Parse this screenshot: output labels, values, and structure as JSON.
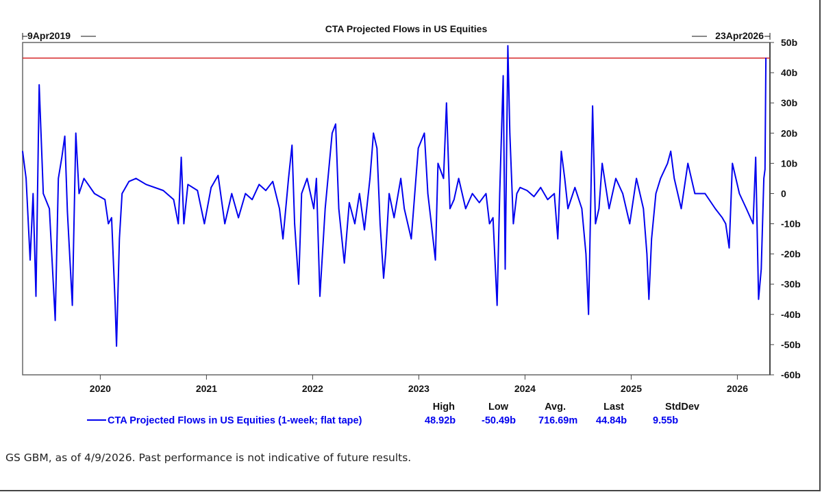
{
  "chart_data": {
    "type": "line",
    "title": "CTA Projected Flows in US Equities",
    "start_label": "9Apr2019",
    "end_label": "23Apr2026",
    "x_ticks": [
      "2020",
      "2021",
      "2022",
      "2023",
      "2024",
      "2025",
      "2026"
    ],
    "y_ticks": [
      "50b",
      "40b",
      "30b",
      "20b",
      "10b",
      "0",
      "-10b",
      "-20b",
      "-30b",
      "-40b",
      "-50b",
      "-60b"
    ],
    "ylim": [
      -60,
      50
    ],
    "xlim": [
      "2019-04-09",
      "2026-04-23"
    ],
    "grid": false,
    "reference_line": {
      "value": 44.84,
      "color": "#d62728"
    },
    "series": [
      {
        "name": "CTA Projected Flows in US Equities (1-week; flat tape)",
        "color": "#0000ee",
        "points": [
          [
            "2019-04-09",
            14
          ],
          [
            "2019-04-21",
            5
          ],
          [
            "2019-05-05",
            -22
          ],
          [
            "2019-05-15",
            0
          ],
          [
            "2019-05-25",
            -34
          ],
          [
            "2019-06-05",
            36
          ],
          [
            "2019-06-19",
            0
          ],
          [
            "2019-07-10",
            -5
          ],
          [
            "2019-07-30",
            -42
          ],
          [
            "2019-08-10",
            5
          ],
          [
            "2019-08-22",
            12
          ],
          [
            "2019-09-01",
            19
          ],
          [
            "2019-09-10",
            -6
          ],
          [
            "2019-09-27",
            -37
          ],
          [
            "2019-10-09",
            20
          ],
          [
            "2019-10-20",
            0
          ],
          [
            "2019-11-06",
            5
          ],
          [
            "2019-12-12",
            0
          ],
          [
            "2020-01-17",
            -2
          ],
          [
            "2020-01-29",
            -10
          ],
          [
            "2020-02-09",
            -8
          ],
          [
            "2020-02-21",
            -36
          ],
          [
            "2020-02-26",
            -50.49
          ],
          [
            "2020-03-07",
            -15
          ],
          [
            "2020-03-16",
            0
          ],
          [
            "2020-04-09",
            4
          ],
          [
            "2020-05-03",
            5
          ],
          [
            "2020-06-07",
            3
          ],
          [
            "2020-08-05",
            1
          ],
          [
            "2020-09-10",
            -2
          ],
          [
            "2020-09-26",
            -10
          ],
          [
            "2020-10-06",
            12
          ],
          [
            "2020-10-15",
            -10
          ],
          [
            "2020-10-29",
            3
          ],
          [
            "2020-12-01",
            1
          ],
          [
            "2020-12-25",
            -10
          ],
          [
            "2021-01-17",
            2
          ],
          [
            "2021-02-10",
            6
          ],
          [
            "2021-03-05",
            -10
          ],
          [
            "2021-03-29",
            0
          ],
          [
            "2021-04-21",
            -8
          ],
          [
            "2021-05-15",
            0
          ],
          [
            "2021-06-07",
            -2
          ],
          [
            "2021-07-01",
            3
          ],
          [
            "2021-07-24",
            1
          ],
          [
            "2021-08-17",
            4
          ],
          [
            "2021-09-09",
            -5
          ],
          [
            "2021-09-21",
            -15
          ],
          [
            "2021-10-10",
            5
          ],
          [
            "2021-10-22",
            16
          ],
          [
            "2021-10-31",
            -10
          ],
          [
            "2021-11-14",
            -30
          ],
          [
            "2021-11-24",
            0
          ],
          [
            "2021-12-13",
            5
          ],
          [
            "2022-01-05",
            -5
          ],
          [
            "2022-01-14",
            5
          ],
          [
            "2022-01-26",
            -34
          ],
          [
            "2022-02-13",
            -5
          ],
          [
            "2022-03-09",
            20
          ],
          [
            "2022-03-21",
            23
          ],
          [
            "2022-04-01",
            -5
          ],
          [
            "2022-04-20",
            -23
          ],
          [
            "2022-05-07",
            -3
          ],
          [
            "2022-05-26",
            -10
          ],
          [
            "2022-06-11",
            0
          ],
          [
            "2022-06-28",
            -12
          ],
          [
            "2022-07-17",
            5
          ],
          [
            "2022-07-29",
            20
          ],
          [
            "2022-08-10",
            15
          ],
          [
            "2022-08-21",
            -10
          ],
          [
            "2022-09-02",
            -28
          ],
          [
            "2022-09-09",
            -20
          ],
          [
            "2022-09-21",
            0
          ],
          [
            "2022-10-08",
            -8
          ],
          [
            "2022-10-31",
            5
          ],
          [
            "2022-11-12",
            -5
          ],
          [
            "2022-12-06",
            -15
          ],
          [
            "2022-12-30",
            15
          ],
          [
            "2023-01-20",
            20
          ],
          [
            "2023-02-01",
            0
          ],
          [
            "2023-02-13",
            -10
          ],
          [
            "2023-02-27",
            -22
          ],
          [
            "2023-03-08",
            10
          ],
          [
            "2023-03-27",
            5
          ],
          [
            "2023-04-06",
            30
          ],
          [
            "2023-04-18",
            -5
          ],
          [
            "2023-05-02",
            -2
          ],
          [
            "2023-05-18",
            5
          ],
          [
            "2023-06-11",
            -5
          ],
          [
            "2023-07-04",
            0
          ],
          [
            "2023-07-28",
            -3
          ],
          [
            "2023-08-20",
            0
          ],
          [
            "2023-09-01",
            -10
          ],
          [
            "2023-09-13",
            -8
          ],
          [
            "2023-09-27",
            -37
          ],
          [
            "2023-10-06",
            0
          ],
          [
            "2023-10-18",
            39
          ],
          [
            "2023-10-25",
            -25
          ],
          [
            "2023-11-03",
            48.92
          ],
          [
            "2023-11-10",
            20
          ],
          [
            "2023-11-22",
            -10
          ],
          [
            "2023-12-04",
            0
          ],
          [
            "2023-12-15",
            2
          ],
          [
            "2024-01-08",
            1
          ],
          [
            "2024-02-01",
            -1
          ],
          [
            "2024-02-24",
            2
          ],
          [
            "2024-03-19",
            -2
          ],
          [
            "2024-04-11",
            0
          ],
          [
            "2024-04-23",
            -15
          ],
          [
            "2024-05-05",
            14
          ],
          [
            "2024-05-17",
            5
          ],
          [
            "2024-05-28",
            -5
          ],
          [
            "2024-06-21",
            2
          ],
          [
            "2024-07-15",
            -5
          ],
          [
            "2024-07-29",
            -20
          ],
          [
            "2024-08-07",
            -40
          ],
          [
            "2024-08-21",
            29
          ],
          [
            "2024-08-31",
            -10
          ],
          [
            "2024-09-12",
            -5
          ],
          [
            "2024-09-23",
            10
          ],
          [
            "2024-10-17",
            -5
          ],
          [
            "2024-11-09",
            5
          ],
          [
            "2024-12-03",
            0
          ],
          [
            "2024-12-27",
            -10
          ],
          [
            "2025-01-19",
            5
          ],
          [
            "2025-02-12",
            -5
          ],
          [
            "2025-02-24",
            -20
          ],
          [
            "2025-03-03",
            -35
          ],
          [
            "2025-03-12",
            -15
          ],
          [
            "2025-03-27",
            0
          ],
          [
            "2025-04-12",
            5
          ],
          [
            "2025-05-06",
            10
          ],
          [
            "2025-05-17",
            14
          ],
          [
            "2025-05-29",
            5
          ],
          [
            "2025-06-22",
            -5
          ],
          [
            "2025-07-15",
            10
          ],
          [
            "2025-08-08",
            0
          ],
          [
            "2025-09-12",
            0
          ],
          [
            "2025-10-17",
            -5
          ],
          [
            "2025-11-10",
            -8
          ],
          [
            "2025-11-22",
            -10
          ],
          [
            "2025-12-04",
            -18
          ],
          [
            "2025-12-15",
            10
          ],
          [
            "2026-01-08",
            0
          ],
          [
            "2026-02-01",
            -5
          ],
          [
            "2026-02-24",
            -10
          ],
          [
            "2026-03-05",
            12
          ],
          [
            "2026-03-15",
            -35
          ],
          [
            "2026-03-24",
            -25
          ],
          [
            "2026-04-02",
            5
          ],
          [
            "2026-04-06",
            8
          ],
          [
            "2026-04-09",
            44.84
          ]
        ]
      }
    ],
    "stats": {
      "headers": [
        "High",
        "Low",
        "Avg.",
        "Last",
        "StdDev"
      ],
      "values": [
        "48.92b",
        "-50.49b",
        "716.69m",
        "44.84b",
        "9.55b"
      ]
    },
    "legend_position": "bottom"
  },
  "footer": "GS GBM, as of 4/9/2026. Past performance is not indicative of future results."
}
